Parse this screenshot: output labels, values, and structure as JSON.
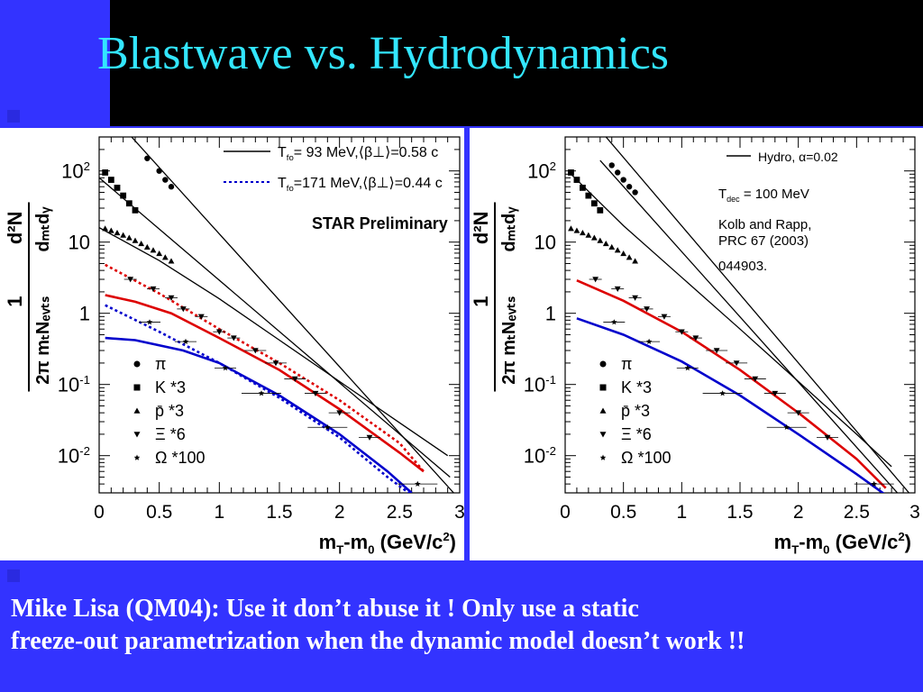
{
  "slide": {
    "title": "Blastwave vs. Hydrodynamics",
    "caption_line1": "Mike Lisa (QM04): Use it don’t abuse it ! Only use a static",
    "caption_line2": "freeze-out parametrization when the dynamic model doesn’t work !!",
    "colors": {
      "background": "#3333ff",
      "title": "#33e6ff",
      "topbar": "#000000",
      "caption": "#ffffff"
    }
  },
  "chart_data": [
    {
      "type": "scatter",
      "title": "",
      "xlabel": "m_T-m_0 (GeV/c^2)",
      "ylabel": "1/(2π m_T N_evts) d²N/(dm_T dy)",
      "log_y": true,
      "xlim": [
        0,
        3
      ],
      "ylim": [
        0.003,
        300
      ],
      "xticks": [
        "0",
        "0.5",
        "1",
        "1.5",
        "2",
        "2.5",
        "3"
      ],
      "yticks": [
        "10^-2",
        "10^-1",
        "1",
        "10",
        "10^2"
      ],
      "annotation": "STAR Preliminary",
      "legend_lines": [
        {
          "label": "T_fo= 93 MeV,⟨β⊥⟩=0.58 c",
          "style": "solid"
        },
        {
          "label": "T_fo=171 MeV,⟨β⊥⟩=0.44 c",
          "style": "dotted"
        }
      ],
      "legend_markers": [
        "π",
        "K *3",
        "p̄ *3",
        "Ξ *6",
        "Ω *100"
      ],
      "series": [
        {
          "name": "π",
          "marker": "circle",
          "x": [
            0.4,
            0.5,
            0.55,
            0.6
          ],
          "y": [
            150,
            100,
            75,
            60
          ]
        },
        {
          "name": "K *3",
          "marker": "square",
          "x": [
            0.05,
            0.1,
            0.15,
            0.2,
            0.25,
            0.3
          ],
          "y": [
            95,
            75,
            58,
            45,
            35,
            28
          ]
        },
        {
          "name": "p̄ *3",
          "marker": "triangle-up",
          "x": [
            0.05,
            0.1,
            0.15,
            0.2,
            0.25,
            0.3,
            0.35,
            0.4,
            0.45,
            0.5,
            0.55,
            0.6
          ],
          "y": [
            15.5,
            14.5,
            13.5,
            12.5,
            11.5,
            10.5,
            9.5,
            8.5,
            7.7,
            6.9,
            6.1,
            5.4
          ]
        },
        {
          "name": "Ξ *6",
          "marker": "triangle-down",
          "x": [
            0.26,
            0.45,
            0.6,
            0.7,
            0.85,
            1.0,
            1.12,
            1.3,
            1.47,
            1.63,
            1.8,
            2.0,
            2.25
          ],
          "y": [
            3.0,
            2.2,
            1.65,
            1.15,
            0.9,
            0.55,
            0.45,
            0.3,
            0.2,
            0.12,
            0.075,
            0.04,
            0.018
          ]
        },
        {
          "name": "Ω *100",
          "marker": "star",
          "x": [
            0.42,
            0.72,
            1.05,
            1.35,
            1.9,
            2.65
          ],
          "y": [
            0.75,
            0.4,
            0.17,
            0.075,
            0.025,
            0.004
          ]
        }
      ],
      "curves": [
        {
          "name": "π solid",
          "style": "solid",
          "color": "#000000",
          "x": [
            0.27,
            2.95
          ],
          "y": [
            300,
            0.003
          ]
        },
        {
          "name": "K solid",
          "style": "solid",
          "color": "#000000",
          "x": [
            0.0,
            2.92
          ],
          "y": [
            80,
            0.005
          ]
        },
        {
          "name": "p̄ solid",
          "style": "solid",
          "color": "#000000",
          "x": [
            0.0,
            0.5,
            1.0,
            1.5,
            2.0,
            2.5,
            2.9
          ],
          "y": [
            16,
            5.5,
            1.6,
            0.42,
            0.11,
            0.029,
            0.01
          ]
        },
        {
          "name": "Ξ solid",
          "style": "solid",
          "color": "#dd0000",
          "x": [
            0.05,
            0.3,
            0.6,
            1.0,
            1.5,
            2.0,
            2.5,
            2.7
          ],
          "y": [
            1.8,
            1.45,
            1.0,
            0.45,
            0.16,
            0.045,
            0.011,
            0.006
          ]
        },
        {
          "name": "Ω solid",
          "style": "solid",
          "color": "#0000cc",
          "x": [
            0.05,
            0.3,
            0.7,
            1.0,
            1.5,
            2.0,
            2.4,
            2.6
          ],
          "y": [
            0.45,
            0.42,
            0.3,
            0.2,
            0.07,
            0.02,
            0.006,
            0.003
          ]
        },
        {
          "name": "Ξ dotted",
          "style": "dotted",
          "color": "#dd0000",
          "x": [
            0.05,
            0.5,
            1.0,
            1.5,
            2.0,
            2.5,
            2.7
          ],
          "y": [
            4.8,
            1.9,
            0.6,
            0.2,
            0.06,
            0.015,
            0.006
          ]
        },
        {
          "name": "Ω dotted",
          "style": "dotted",
          "color": "#0000cc",
          "x": [
            0.05,
            0.5,
            1.0,
            1.5,
            2.0,
            2.4,
            2.6
          ],
          "y": [
            1.3,
            0.55,
            0.2,
            0.065,
            0.018,
            0.005,
            0.0028
          ]
        }
      ]
    },
    {
      "type": "scatter",
      "title": "",
      "xlabel": "m_T-m_0 (GeV/c^2)",
      "ylabel": "1/(2π m_T N_evts) d²N/(dm_T dy)",
      "log_y": true,
      "xlim": [
        0,
        3
      ],
      "ylim": [
        0.003,
        300
      ],
      "xticks": [
        "0",
        "0.5",
        "1",
        "1.5",
        "2",
        "2.5",
        "3"
      ],
      "yticks": [
        "10^-2",
        "10^-1",
        "1",
        "10",
        "10^2"
      ],
      "annotation": "Hydro, α=0.02",
      "notes": [
        "T_dec = 100 MeV",
        "Kolb and Rapp,",
        "PRC 67 (2003)",
        "044903."
      ],
      "legend_lines": [
        {
          "label": "Hydro, α=0.02",
          "style": "solid"
        }
      ],
      "legend_markers": [
        "π",
        "K *3",
        "p̄ *3",
        "Ξ *6",
        "Ω *100"
      ],
      "series": [
        {
          "name": "π",
          "marker": "circle",
          "x": [
            0.4,
            0.45,
            0.5,
            0.55,
            0.6
          ],
          "y": [
            120,
            95,
            75,
            60,
            50
          ]
        },
        {
          "name": "K *3",
          "marker": "square",
          "x": [
            0.05,
            0.1,
            0.15,
            0.2,
            0.25,
            0.3
          ],
          "y": [
            95,
            75,
            58,
            45,
            35,
            28
          ]
        },
        {
          "name": "p̄ *3",
          "marker": "triangle-up",
          "x": [
            0.05,
            0.1,
            0.15,
            0.2,
            0.25,
            0.3,
            0.35,
            0.4,
            0.45,
            0.5,
            0.55,
            0.6
          ],
          "y": [
            15.5,
            14.5,
            13.5,
            12.5,
            11.5,
            10.5,
            9.5,
            8.5,
            7.7,
            6.9,
            6.1,
            5.4
          ]
        },
        {
          "name": "Ξ *6",
          "marker": "triangle-down",
          "x": [
            0.26,
            0.45,
            0.6,
            0.7,
            0.85,
            1.0,
            1.12,
            1.3,
            1.47,
            1.63,
            1.8,
            2.0,
            2.25
          ],
          "y": [
            3.0,
            2.2,
            1.65,
            1.15,
            0.9,
            0.55,
            0.45,
            0.3,
            0.2,
            0.12,
            0.075,
            0.04,
            0.018
          ]
        },
        {
          "name": "Ω *100",
          "marker": "star",
          "x": [
            0.42,
            0.72,
            1.05,
            1.35,
            1.9,
            2.65
          ],
          "y": [
            0.75,
            0.4,
            0.17,
            0.075,
            0.025,
            0.004
          ]
        }
      ],
      "curves": [
        {
          "name": "π hydro",
          "style": "solid",
          "color": "#000000",
          "x": [
            0.35,
            2.95
          ],
          "y": [
            300,
            0.003
          ]
        },
        {
          "name": "K hydro",
          "style": "solid",
          "color": "#000000",
          "x": [
            0.3,
            2.85
          ],
          "y": [
            140,
            0.003
          ]
        },
        {
          "name": "p̄ hydro",
          "style": "solid",
          "color": "#000000",
          "x": [
            0.05,
            0.5,
            1.0,
            1.5,
            2.0,
            2.5,
            2.8
          ],
          "y": [
            90,
            17,
            3.2,
            0.6,
            0.11,
            0.02,
            0.007
          ]
        },
        {
          "name": "Ξ hydro",
          "style": "solid",
          "color": "#dd0000",
          "x": [
            0.1,
            0.5,
            1.0,
            1.5,
            2.0,
            2.5,
            2.75
          ],
          "y": [
            2.9,
            1.5,
            0.55,
            0.16,
            0.04,
            0.009,
            0.0035
          ]
        },
        {
          "name": "Ω hydro",
          "style": "solid",
          "color": "#0000cc",
          "x": [
            0.1,
            0.5,
            1.0,
            1.5,
            2.0,
            2.5,
            2.75
          ],
          "y": [
            0.85,
            0.5,
            0.21,
            0.07,
            0.02,
            0.0055,
            0.0028
          ]
        }
      ]
    }
  ]
}
